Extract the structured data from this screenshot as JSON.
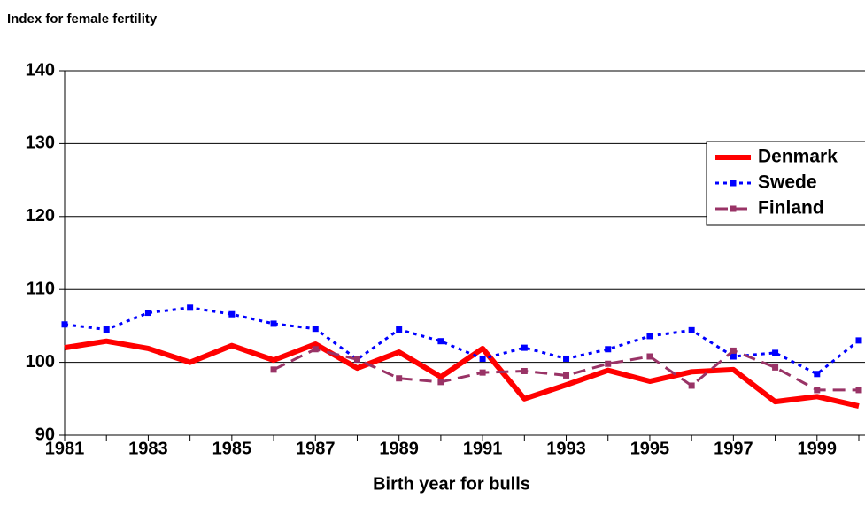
{
  "chart_data": {
    "type": "line",
    "title": "Index for female fertility",
    "x_label": "Birth year for bulls",
    "categories": [
      "1981",
      null,
      "1983",
      null,
      "1985",
      null,
      "1987",
      null,
      "1989",
      null,
      "1991",
      null,
      "1993",
      null,
      "1995",
      null,
      "1997",
      null,
      "1999",
      null
    ],
    "series": [
      {
        "name": "Denmark",
        "color": "#ff0000",
        "values": [
          102.0,
          102.9,
          101.9,
          100.0,
          102.3,
          100.3,
          102.5,
          99.2,
          101.4,
          98.0,
          101.9,
          95.0,
          96.9,
          98.9,
          97.4,
          98.7,
          99.0,
          94.6,
          95.3,
          94.0
        ]
      },
      {
        "name": "Swede",
        "color": "#0000ff",
        "values": [
          105.2,
          104.5,
          106.8,
          107.5,
          106.6,
          105.3,
          104.6,
          100.4,
          104.5,
          102.9,
          100.5,
          102.0,
          100.5,
          101.8,
          103.6,
          104.4,
          100.8,
          101.3,
          98.4,
          103.0
        ]
      },
      {
        "name": "Finland",
        "color": "#993366",
        "values": [
          null,
          null,
          null,
          null,
          null,
          99.0,
          101.8,
          100.4,
          97.8,
          97.3,
          98.6,
          98.8,
          98.2,
          99.8,
          100.8,
          96.8,
          101.6,
          99.3,
          96.2,
          96.2
        ]
      }
    ],
    "ylim": [
      90,
      140
    ],
    "yticks": [
      90,
      100,
      110,
      120,
      130,
      140
    ],
    "grid": true
  }
}
